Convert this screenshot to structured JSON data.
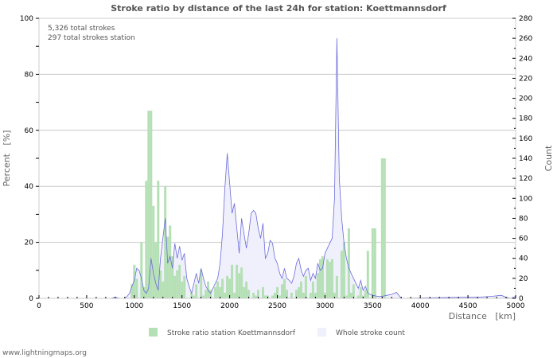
{
  "chart_data": {
    "type": "bar+area",
    "title": "Stroke ratio by distance of the last 24h for station: Koettmannsdorf",
    "info_lines": [
      "5,326 total strokes",
      "297 total strokes station"
    ],
    "xlabel": "Distance   [km]",
    "ylabel_left": "Percent   [%]",
    "ylabel_right": "Count",
    "xlim": [
      0,
      5000
    ],
    "ylim_left": [
      0,
      100
    ],
    "ylim_right": [
      0,
      280
    ],
    "x_ticks": [
      0,
      500,
      1000,
      1500,
      2000,
      2500,
      3000,
      3500,
      4000,
      4500,
      5000
    ],
    "y_left_ticks": [
      0,
      20,
      40,
      60,
      80,
      100
    ],
    "y_right_ticks": [
      0,
      20,
      40,
      60,
      80,
      100,
      120,
      140,
      160,
      180,
      200,
      220,
      240,
      260,
      280
    ],
    "grid": true,
    "legend_position": "bottom",
    "series": [
      {
        "name": "Stroke ratio station Koettmannsdorf",
        "type": "bar",
        "axis": "left",
        "color": "#b5e0b5",
        "x": [
          975,
          1000,
          1025,
          1075,
          1100,
          1125,
          1150,
          1175,
          1200,
          1225,
          1250,
          1275,
          1300,
          1325,
          1350,
          1375,
          1400,
          1425,
          1450,
          1475,
          1500,
          1525,
          1600,
          1625,
          1650,
          1700,
          1725,
          1750,
          1775,
          1800,
          1850,
          1875,
          1900,
          1925,
          1950,
          1975,
          2000,
          2025,
          2050,
          2075,
          2100,
          2125,
          2150,
          2175,
          2200,
          2250,
          2275,
          2300,
          2350,
          2375,
          2400,
          2450,
          2475,
          2500,
          2525,
          2550,
          2575,
          2600,
          2650,
          2700,
          2725,
          2750,
          2775,
          2800,
          2850,
          2875,
          2900,
          2925,
          2950,
          2975,
          3000,
          3025,
          3050,
          3075,
          3100,
          3125,
          3175,
          3200,
          3225,
          3250,
          3275,
          3300,
          3350,
          3375,
          3400,
          3425,
          3450,
          3500,
          3525,
          3600,
          3625
        ],
        "values": [
          5,
          12,
          7,
          20,
          4,
          42,
          67,
          67,
          33,
          20,
          42,
          10,
          6,
          40,
          22,
          26,
          15,
          8,
          10,
          12,
          6,
          8,
          2,
          1,
          5,
          10,
          1,
          3,
          6,
          3,
          4,
          6,
          4,
          7,
          2,
          8,
          7,
          12,
          2,
          12,
          9,
          11,
          4,
          6,
          3,
          2,
          1,
          3,
          4,
          1,
          1,
          1,
          2,
          4,
          1,
          5,
          7,
          3,
          2,
          3,
          4,
          6,
          2,
          8,
          2,
          6,
          2,
          9,
          14,
          15,
          2,
          14,
          13,
          14,
          2,
          8,
          17,
          20,
          1,
          25,
          2,
          5,
          1,
          4,
          1,
          3,
          17,
          25,
          25,
          50,
          50
        ]
      },
      {
        "name": "Whole stroke count",
        "type": "area",
        "axis": "right",
        "color": "#6b6bdb",
        "fill": "#f0f0fc",
        "x": [
          750,
          800,
          850,
          900,
          925,
          950,
          975,
          1000,
          1025,
          1050,
          1075,
          1100,
          1125,
          1150,
          1175,
          1200,
          1225,
          1250,
          1275,
          1300,
          1325,
          1350,
          1375,
          1400,
          1425,
          1450,
          1475,
          1500,
          1525,
          1550,
          1575,
          1600,
          1625,
          1650,
          1675,
          1700,
          1725,
          1750,
          1775,
          1800,
          1825,
          1850,
          1875,
          1900,
          1925,
          1950,
          1975,
          2000,
          2025,
          2050,
          2075,
          2100,
          2125,
          2150,
          2175,
          2200,
          2225,
          2250,
          2275,
          2300,
          2325,
          2350,
          2375,
          2400,
          2425,
          2450,
          2475,
          2500,
          2525,
          2550,
          2575,
          2600,
          2625,
          2650,
          2675,
          2700,
          2725,
          2750,
          2775,
          2800,
          2825,
          2850,
          2875,
          2900,
          2925,
          2950,
          2975,
          3000,
          3025,
          3050,
          3075,
          3100,
          3125,
          3150,
          3175,
          3200,
          3225,
          3250,
          3275,
          3300,
          3325,
          3350,
          3375,
          3400,
          3425,
          3450,
          3500,
          3550,
          3600,
          3650,
          3700,
          3750,
          3800,
          4450,
          4600,
          4750,
          4850,
          4900,
          4950,
          5000
        ],
        "values": [
          0,
          1,
          0,
          0,
          2,
          5,
          12,
          18,
          30,
          28,
          20,
          8,
          5,
          10,
          40,
          25,
          15,
          8,
          40,
          60,
          80,
          35,
          42,
          30,
          55,
          40,
          52,
          38,
          45,
          20,
          12,
          5,
          15,
          25,
          15,
          30,
          20,
          12,
          8,
          5,
          10,
          15,
          20,
          35,
          65,
          110,
          145,
          115,
          85,
          95,
          70,
          45,
          80,
          65,
          50,
          65,
          85,
          88,
          85,
          70,
          60,
          75,
          40,
          45,
          58,
          55,
          40,
          35,
          25,
          20,
          30,
          20,
          18,
          15,
          22,
          35,
          40,
          28,
          22,
          28,
          30,
          18,
          25,
          20,
          35,
          28,
          30,
          45,
          50,
          55,
          60,
          100,
          260,
          120,
          80,
          55,
          40,
          30,
          25,
          20,
          15,
          10,
          18,
          8,
          12,
          5,
          3,
          2,
          2,
          3,
          4,
          6,
          0,
          1,
          1,
          2,
          3,
          1,
          0,
          2
        ]
      }
    ]
  },
  "legend": {
    "items": [
      {
        "label": "Stroke ratio station Koettmannsdorf",
        "color": "#b5e0b5"
      },
      {
        "label": "Whole stroke count",
        "color": "#f0f0fc"
      }
    ]
  },
  "footer": {
    "text": "www.lightningmaps.org"
  }
}
